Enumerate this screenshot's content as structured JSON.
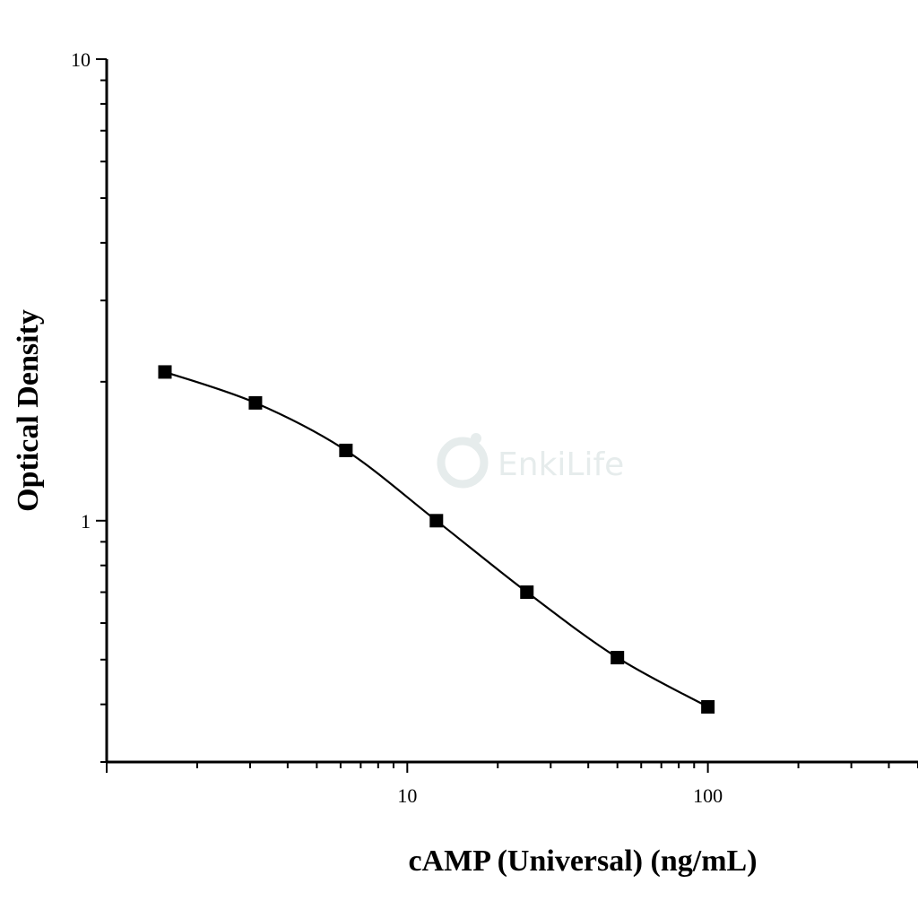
{
  "watermark": {
    "text": "EnkiLife"
  },
  "chart_data": {
    "type": "scatter",
    "title": "",
    "xlabel": "cAMP (Universal) (ng/mL)",
    "ylabel": "Optical Density",
    "x_scale": "log",
    "y_scale": "log",
    "xlim": [
      1,
      500
    ],
    "ylim": [
      0.3,
      10
    ],
    "x_tick_labels": [
      "10",
      "100"
    ],
    "y_tick_labels": [
      "1",
      "10"
    ],
    "grid": false,
    "legend": "none",
    "series": [
      {
        "marker": "square",
        "color": "#000000",
        "x": [
          1.5625,
          3.125,
          6.25,
          12.5,
          25,
          50,
          100
        ],
        "y": [
          2.1,
          1.8,
          1.42,
          1.0,
          0.7,
          0.505,
          0.395
        ]
      }
    ],
    "fit_curve": {
      "type": "4PL smooth fit",
      "color": "#000000"
    }
  }
}
